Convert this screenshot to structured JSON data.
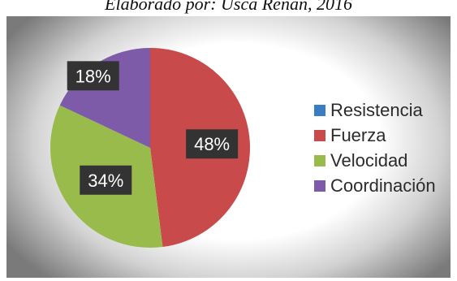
{
  "caption": "Elaborado por: Usca Renan, 2016",
  "chart_data": {
    "type": "pie",
    "title": "",
    "categories": [
      "Resistencia",
      "Fuerza",
      "Velocidad",
      "Coordinación"
    ],
    "values": [
      0,
      48,
      34,
      18
    ],
    "labels": [
      "",
      "48%",
      "34%",
      "18%"
    ],
    "colors": [
      "#3b7dc4",
      "#c84a4a",
      "#98bb4c",
      "#7d5ba8"
    ],
    "legend_position": "right",
    "start_angle_deg": 0,
    "direction": "clockwise"
  }
}
